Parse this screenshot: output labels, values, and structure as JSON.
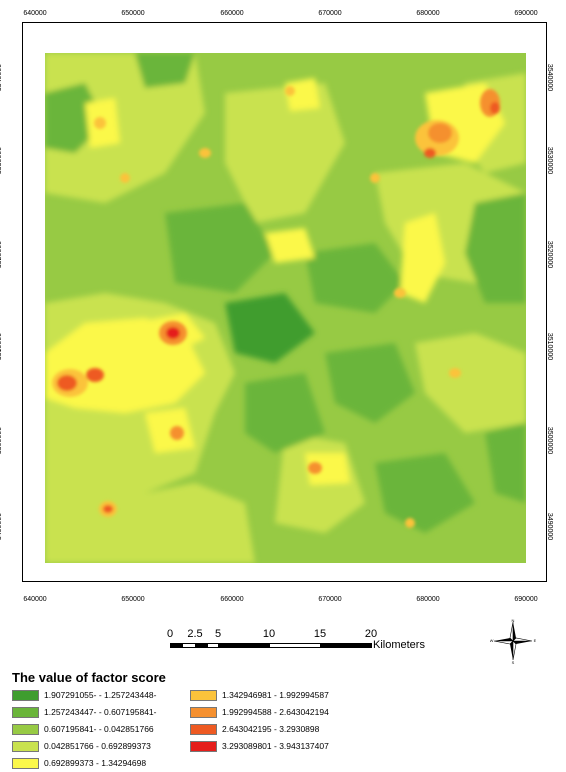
{
  "axes": {
    "easting_ticks": [
      "640000",
      "650000",
      "660000",
      "670000",
      "680000",
      "690000"
    ],
    "northing_ticks": [
      "3540000",
      "3530000",
      "3520000",
      "3510000",
      "3500000",
      "3490000"
    ]
  },
  "scale_bar": {
    "labels": [
      "0",
      "2.5",
      "5",
      "10",
      "15",
      "20"
    ],
    "units": "Kilometers"
  },
  "north_arrow": {
    "icon": "compass-rose-icon",
    "letters": [
      "N",
      "S",
      "E",
      "W"
    ]
  },
  "legend": {
    "title": "The value of factor score",
    "classes": [
      {
        "label": "1.907291055- - 1.257243448-",
        "color": "#3f9d2f"
      },
      {
        "label": "1.257243447- - 0.607195841-",
        "color": "#6ab53a"
      },
      {
        "label": "0.607195841- - 0.042851766",
        "color": "#97ca44"
      },
      {
        "label": "0.042851766 - 0.692899373",
        "color": "#c9e24f"
      },
      {
        "label": "0.692899373 - 1.34294698",
        "color": "#fbf84a"
      },
      {
        "label": "1.342946981 - 1.992994587",
        "color": "#fbc33b"
      },
      {
        "label": "1.992994588 - 2.643042194",
        "color": "#f5902f"
      },
      {
        "label": "2.643042195 - 3.2930898",
        "color": "#ee5a22"
      },
      {
        "label": "3.293089801 - 3.943137407",
        "color": "#e51e1b"
      }
    ]
  }
}
